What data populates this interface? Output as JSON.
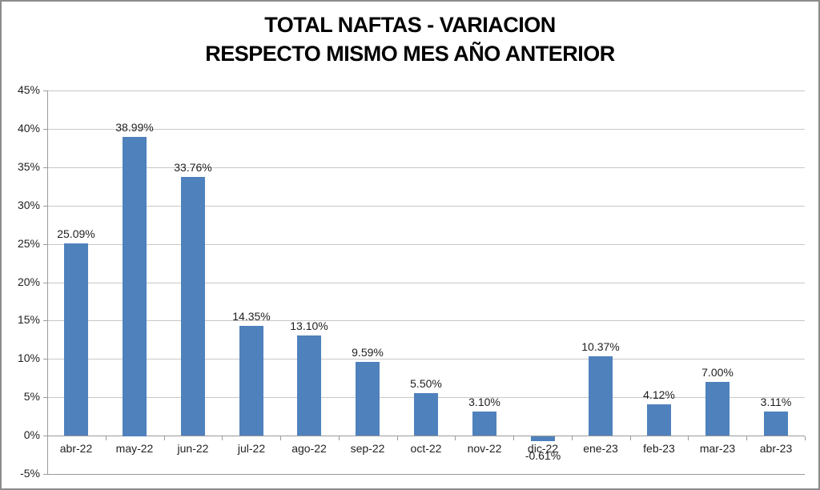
{
  "window": {
    "background": "#FFFFFF",
    "border_color": "#8C8C8C"
  },
  "chart_data": {
    "type": "bar",
    "title": "TOTAL NAFTAS - VARIACION RESPECTO MISMO MES AÑO ANTERIOR",
    "title_lines": [
      "TOTAL NAFTAS - VARIACION",
      "RESPECTO MISMO MES AÑO ANTERIOR"
    ],
    "categories": [
      "abr-22",
      "may-22",
      "jun-22",
      "jul-22",
      "ago-22",
      "sep-22",
      "oct-22",
      "nov-22",
      "dic-22",
      "ene-23",
      "feb-23",
      "mar-23",
      "abr-23"
    ],
    "values": [
      25.09,
      38.99,
      33.76,
      14.35,
      13.1,
      9.59,
      5.5,
      3.1,
      -0.61,
      10.37,
      4.12,
      7.0,
      3.11
    ],
    "data_labels": [
      "25.09%",
      "38.99%",
      "33.76%",
      "14.35%",
      "13.10%",
      "9.59%",
      "5.50%",
      "3.10%",
      "-0.61%",
      "10.37%",
      "4.12%",
      "7.00%",
      "3.11%"
    ],
    "xlabel": "",
    "ylabel": "",
    "ylim": [
      -5,
      45
    ],
    "y_tick_step": 5,
    "y_tick_labels": [
      "-5%",
      "0%",
      "5%",
      "10%",
      "15%",
      "20%",
      "25%",
      "30%",
      "35%",
      "40%",
      "45%"
    ],
    "grid": true,
    "legend": null,
    "colors": {
      "bar": "#4F81BD",
      "gridline": "#C8C8C8",
      "axis": "#9A9A9A",
      "text": "#1F1F1F",
      "title_text": "#000000"
    }
  }
}
